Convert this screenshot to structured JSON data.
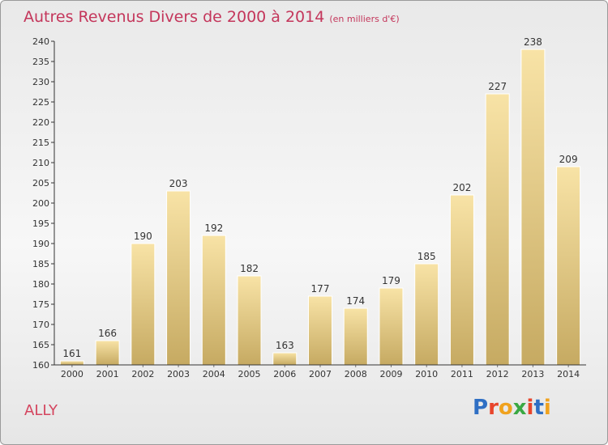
{
  "header": {
    "title": "Autres Revenus Divers de 2000 à 2014",
    "unit": "(en milliers d'€)"
  },
  "footer": {
    "commune": "ALLY",
    "brand": "Proxiti",
    "brand_letter_colors": [
      "#2f6fc4",
      "#e8452c",
      "#f0a21e",
      "#3aa843",
      "#e8452c",
      "#2f6fc4",
      "#f0a21e"
    ]
  },
  "colors": {
    "title": "#c4365b",
    "bar_top": "#f8e3a6",
    "bar_bottom": "#c6aa62",
    "axis": "#333333"
  },
  "chart_data": {
    "type": "bar",
    "title": "Autres Revenus Divers de 2000 à 2014",
    "xlabel": "",
    "ylabel": "",
    "categories": [
      "2000",
      "2001",
      "2002",
      "2003",
      "2004",
      "2005",
      "2006",
      "2007",
      "2008",
      "2009",
      "2010",
      "2011",
      "2012",
      "2013",
      "2014"
    ],
    "values": [
      161,
      166,
      190,
      203,
      192,
      182,
      163,
      177,
      174,
      179,
      185,
      202,
      227,
      238,
      209
    ],
    "ylim": [
      160,
      240
    ],
    "yticks": [
      160,
      165,
      170,
      175,
      180,
      185,
      190,
      195,
      200,
      205,
      210,
      215,
      220,
      225,
      230,
      235,
      240
    ],
    "grid": false
  }
}
